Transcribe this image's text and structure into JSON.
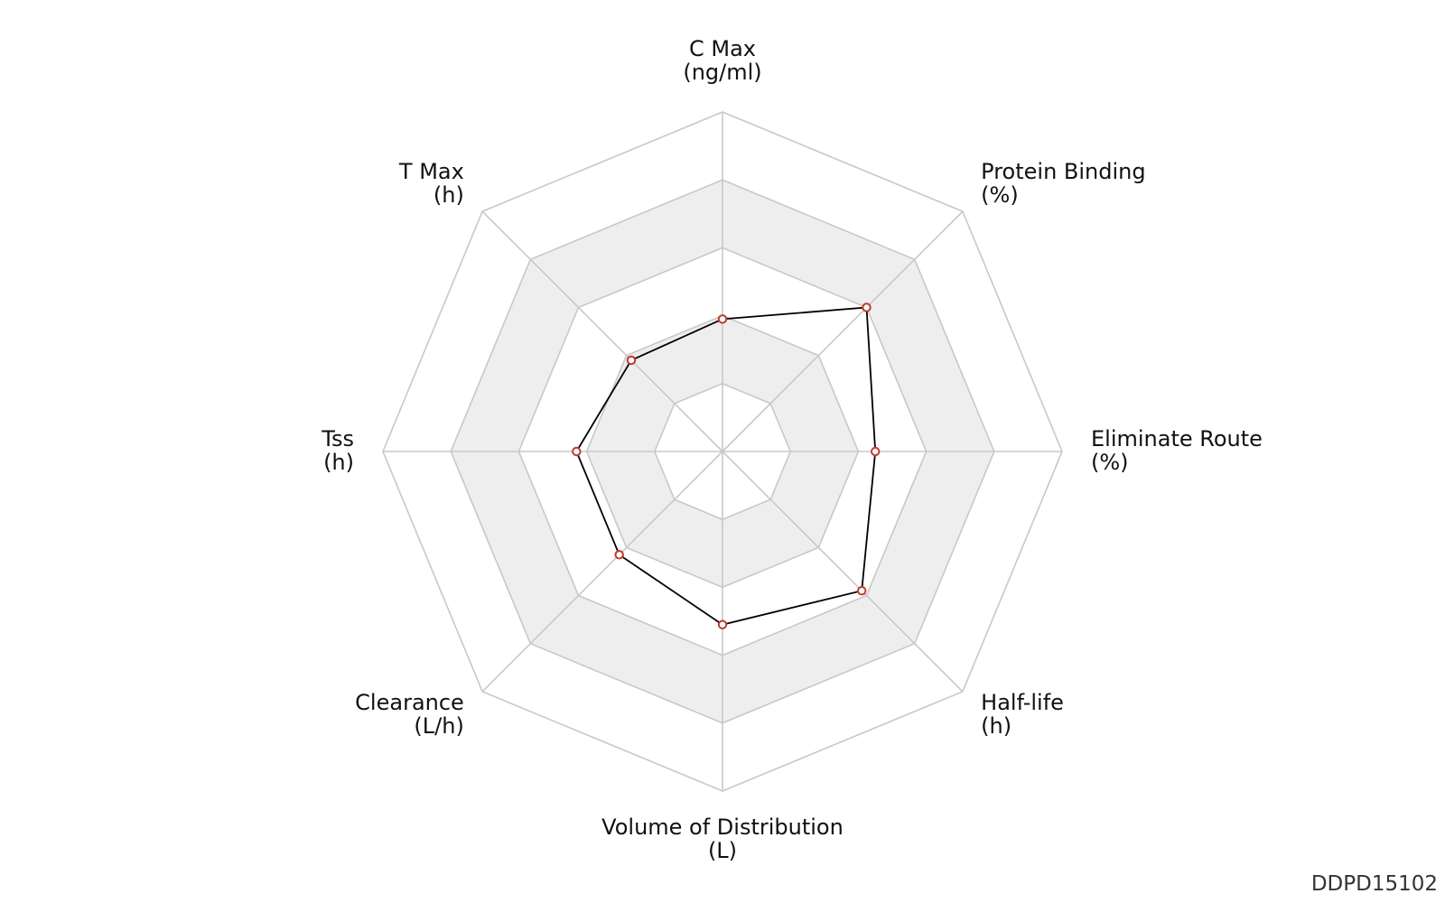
{
  "chart_data": {
    "type": "radar",
    "axes": [
      {
        "name": "C Max",
        "unit": "(ng/ml)"
      },
      {
        "name": "Protein Binding",
        "unit": "(%)"
      },
      {
        "name": "Eliminate Route",
        "unit": "(%)"
      },
      {
        "name": "Half-life",
        "unit": "(h)"
      },
      {
        "name": "Volume of Distribution",
        "unit": "(L)"
      },
      {
        "name": "Clearance",
        "unit": "(L/h)"
      },
      {
        "name": "Tss",
        "unit": "(h)"
      },
      {
        "name": "T Max",
        "unit": "(h)"
      }
    ],
    "rings": 5,
    "range": [
      0,
      1
    ],
    "grid": true,
    "series": [
      {
        "values": [
          0.39,
          0.6,
          0.45,
          0.58,
          0.51,
          0.43,
          0.43,
          0.38
        ]
      }
    ],
    "colors": {
      "line": "#000000",
      "marker": "#c0392b",
      "band": "#eeeeee",
      "grid": "#c8c8c8"
    }
  },
  "footer": {
    "chart_id": "DDPD15102"
  }
}
